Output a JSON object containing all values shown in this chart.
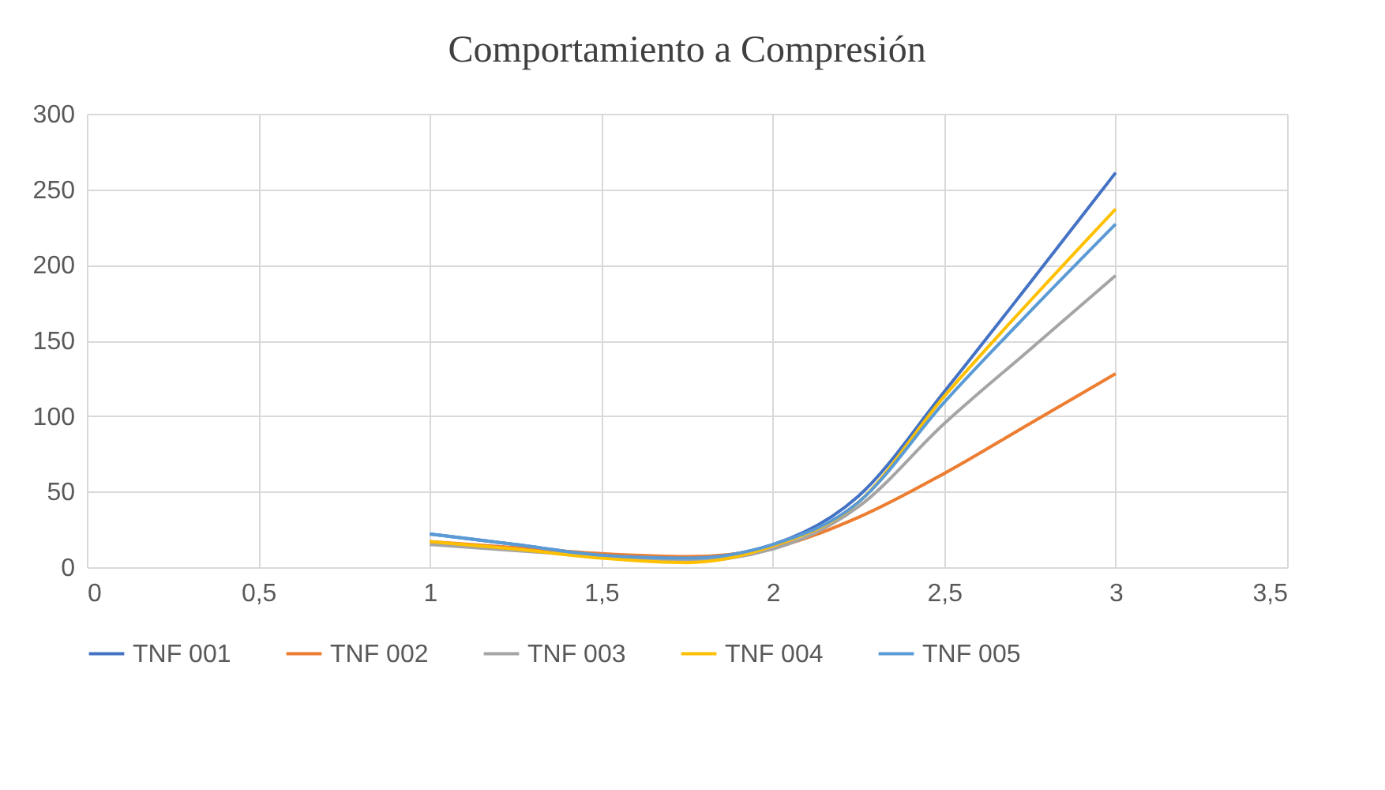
{
  "chart_data": {
    "type": "line",
    "title": "Comportamiento a Compresión",
    "x": [
      1,
      1.25,
      1.5,
      1.75,
      2,
      2.25,
      2.5,
      2.75,
      3
    ],
    "series": [
      {
        "name": "TNF 001",
        "color": "#4472c4",
        "values": [
          22,
          15,
          8,
          6,
          15,
          47,
          116,
          188,
          261
        ]
      },
      {
        "name": "TNF 002",
        "color": "#ed7d31",
        "values": [
          17,
          13,
          9,
          7,
          13,
          33,
          62,
          95,
          128
        ]
      },
      {
        "name": "TNF 003",
        "color": "#a5a5a5",
        "values": [
          15,
          11,
          7,
          4,
          12,
          40,
          95,
          144,
          193
        ]
      },
      {
        "name": "TNF 004",
        "color": "#ffc000",
        "values": [
          17,
          12,
          6,
          3,
          14,
          43,
          113,
          176,
          237
        ]
      },
      {
        "name": "TNF 005",
        "color": "#5b9bd5",
        "values": [
          22,
          15,
          8,
          6,
          15,
          43,
          109,
          169,
          227
        ]
      }
    ],
    "xlim": [
      0,
      3.5
    ],
    "xticks": [
      {
        "value": 0,
        "label": "0"
      },
      {
        "value": 0.5,
        "label": "0,5"
      },
      {
        "value": 1,
        "label": "1"
      },
      {
        "value": 1.5,
        "label": "1,5"
      },
      {
        "value": 2,
        "label": "2"
      },
      {
        "value": 2.5,
        "label": "2,5"
      },
      {
        "value": 3,
        "label": "3"
      },
      {
        "value": 3.5,
        "label": "3,5"
      }
    ],
    "ylim": [
      0,
      300
    ],
    "yticks": [
      0,
      50,
      100,
      150,
      200,
      250,
      300
    ],
    "grid": true,
    "legend": "bottom",
    "marker": "none",
    "line_style": "solid"
  }
}
